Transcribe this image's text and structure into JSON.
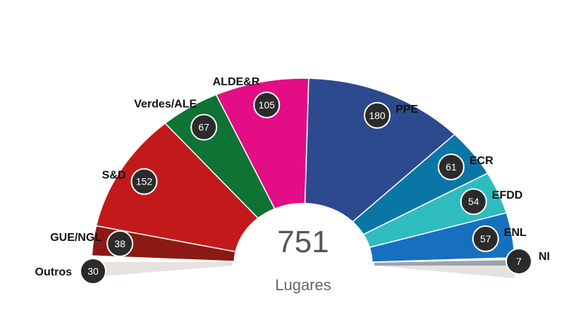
{
  "chart_data": {
    "type": "pie",
    "subtype": "parliament-semicircle",
    "total": "751",
    "total_caption": "Lugares",
    "series": [
      {
        "name": "Outros",
        "value": 30,
        "color": "#e6e2df"
      },
      {
        "name": "GUE/NGL",
        "value": 38,
        "color": "#8b1a14"
      },
      {
        "name": "S&D",
        "value": 152,
        "color": "#c21a1a"
      },
      {
        "name": "Verdes/ALE",
        "value": 67,
        "color": "#0e7335"
      },
      {
        "name": "ALDE&R",
        "value": 105,
        "color": "#e30d86"
      },
      {
        "name": "PPE",
        "value": 180,
        "color": "#2e4a8e"
      },
      {
        "name": "ECR",
        "value": 61,
        "color": "#0a76a6"
      },
      {
        "name": "EFDD",
        "value": 54,
        "color": "#2fbcc1"
      },
      {
        "name": "ENL",
        "value": 57,
        "color": "#1770bf"
      },
      {
        "name": "NI",
        "value": 7,
        "color": "#9aa4ad"
      }
    ]
  }
}
